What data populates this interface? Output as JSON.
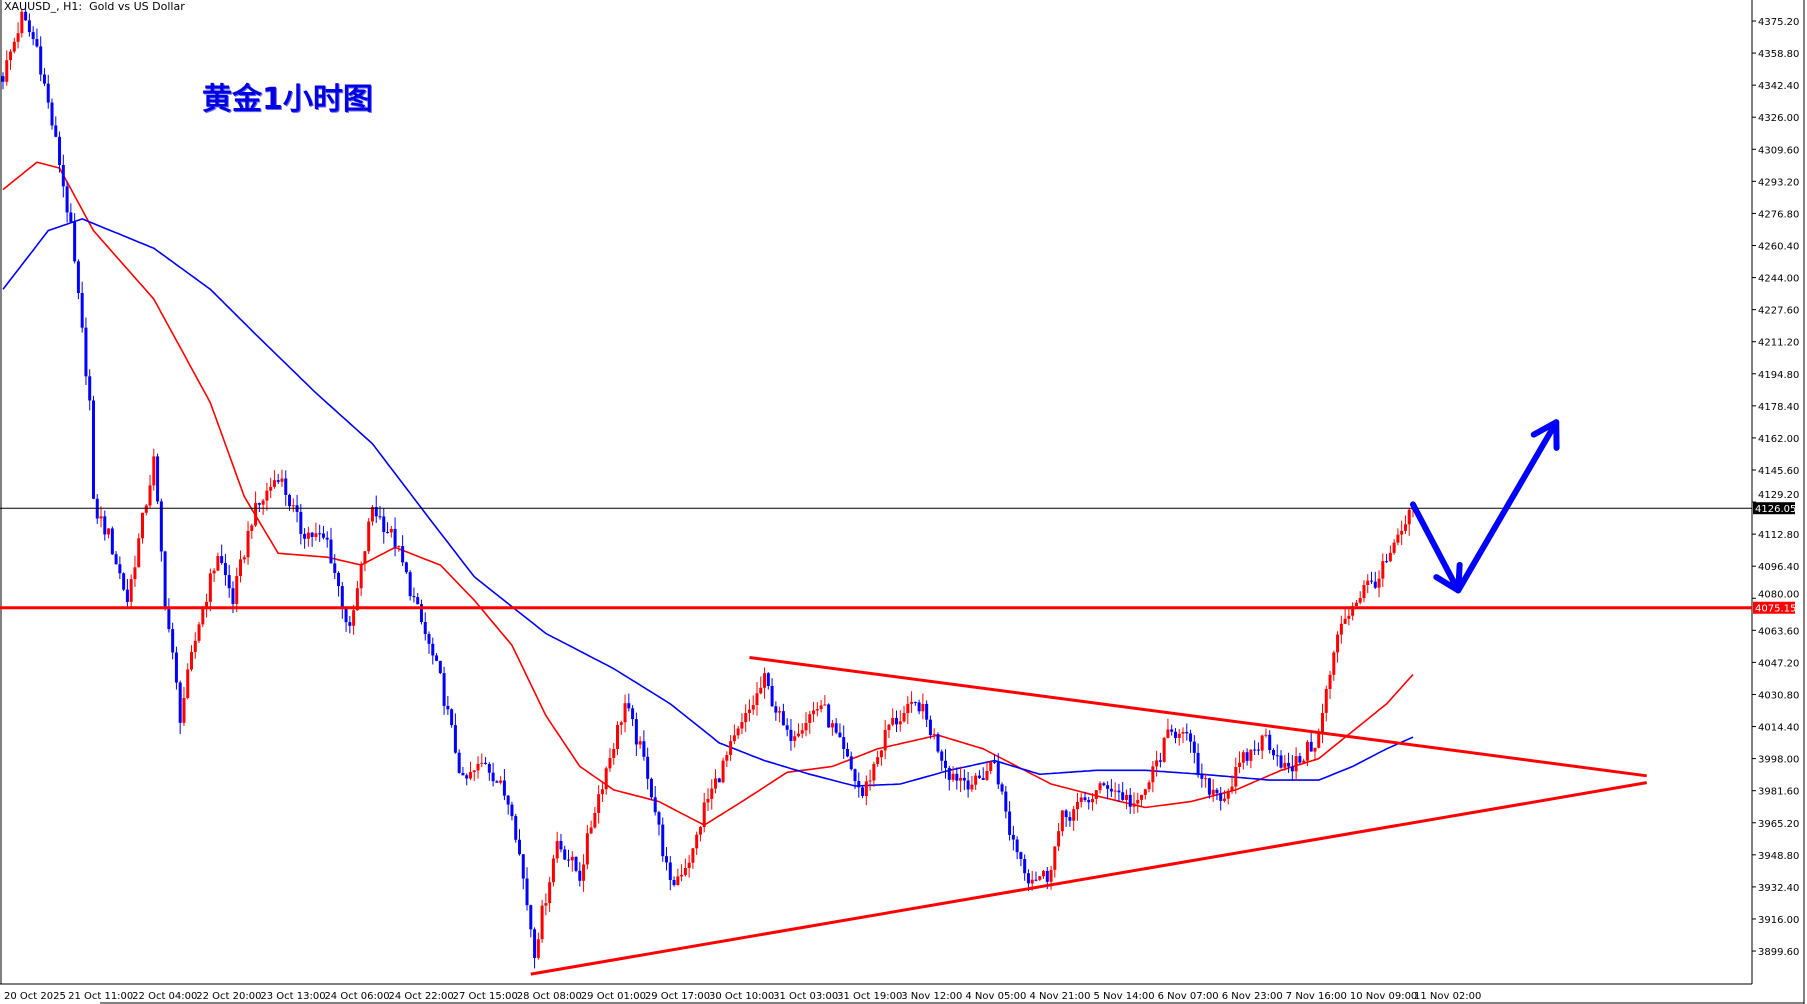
{
  "header": {
    "symbol_info": "XAUUSD_, H1:  Gold vs US Dollar"
  },
  "annotation_title": "黄金1小时图",
  "colors": {
    "bull": "#ff0000",
    "bear": "#0000ff",
    "ma_fast": "#ff0000",
    "ma_slow": "#0000ff",
    "support_line": "#ff0000",
    "trendline": "#ff0000",
    "arrow": "#0000ff",
    "current_price_line": "#000000"
  },
  "chart_data": {
    "type": "candlestick",
    "timeframe": "H1",
    "ylim": [
      3886,
      4384
    ],
    "y_ticks": [
      "4375.20",
      "4358.80",
      "4342.40",
      "4326.00",
      "4309.60",
      "4293.20",
      "4276.80",
      "4260.40",
      "4244.00",
      "4227.60",
      "4211.20",
      "4194.80",
      "4178.40",
      "4162.00",
      "4145.60",
      "4129.20",
      "4112.80",
      "4096.40",
      "4080.00",
      "4063.60",
      "4047.20",
      "4030.80",
      "4014.40",
      "3998.00",
      "3981.60",
      "3965.20",
      "3948.80",
      "3932.40",
      "3916.00",
      "3899.60"
    ],
    "x_ticks": [
      "20 Oct 2025",
      "21 Oct 11:00",
      "22 Oct 04:00",
      "22 Oct 20:00",
      "23 Oct 13:00",
      "24 Oct 06:00",
      "24 Oct 22:00",
      "27 Oct 15:00",
      "28 Oct 08:00",
      "29 Oct 01:00",
      "29 Oct 17:00",
      "30 Oct 10:00",
      "31 Oct 03:00",
      "31 Oct 19:00",
      "3 Nov 12:00",
      "4 Nov 05:00",
      "4 Nov 21:00",
      "5 Nov 14:00",
      "6 Nov 07:00",
      "6 Nov 23:00",
      "7 Nov 16:00",
      "10 Nov 09:00",
      "11 Nov 02:00"
    ],
    "x_tick_interval_bars": 17,
    "bars_count": 375,
    "price_path": [
      [
        0,
        4347
      ],
      [
        5,
        4377
      ],
      [
        9,
        4362
      ],
      [
        15,
        4303
      ],
      [
        18,
        4268
      ],
      [
        23,
        4180
      ],
      [
        24,
        4127
      ],
      [
        28,
        4112
      ],
      [
        33,
        4079
      ],
      [
        40,
        4150
      ],
      [
        43,
        4079
      ],
      [
        47,
        4020
      ],
      [
        52,
        4068
      ],
      [
        57,
        4103
      ],
      [
        61,
        4079
      ],
      [
        66,
        4121
      ],
      [
        73,
        4144
      ],
      [
        79,
        4115
      ],
      [
        86,
        4109
      ],
      [
        92,
        4062
      ],
      [
        98,
        4127
      ],
      [
        104,
        4109
      ],
      [
        110,
        4073
      ],
      [
        116,
        4038
      ],
      [
        122,
        3985
      ],
      [
        128,
        3997
      ],
      [
        135,
        3973
      ],
      [
        141,
        3900
      ],
      [
        147,
        3956
      ],
      [
        153,
        3938
      ],
      [
        157,
        3973
      ],
      [
        165,
        4026
      ],
      [
        171,
        3991
      ],
      [
        177,
        3932
      ],
      [
        183,
        3950
      ],
      [
        186,
        3973
      ],
      [
        193,
        4003
      ],
      [
        202,
        4038
      ],
      [
        208,
        4009
      ],
      [
        217,
        4026
      ],
      [
        228,
        3979
      ],
      [
        235,
        4015
      ],
      [
        243,
        4026
      ],
      [
        251,
        3991
      ],
      [
        258,
        3985
      ],
      [
        263,
        3997
      ],
      [
        267,
        3961
      ],
      [
        272,
        3938
      ],
      [
        277,
        3938
      ],
      [
        281,
        3967
      ],
      [
        293,
        3985
      ],
      [
        301,
        3973
      ],
      [
        309,
        4009
      ],
      [
        313,
        4015
      ],
      [
        318,
        3985
      ],
      [
        324,
        3979
      ],
      [
        329,
        3997
      ],
      [
        335,
        4009
      ],
      [
        341,
        3991
      ],
      [
        349,
        4009
      ],
      [
        351,
        4032
      ],
      [
        355,
        4068
      ],
      [
        361,
        4085
      ],
      [
        365,
        4091
      ],
      [
        370,
        4109
      ],
      [
        374,
        4126.05
      ]
    ],
    "moving_averages": [
      {
        "color": "#ff0000",
        "points": [
          [
            0,
            4289
          ],
          [
            9,
            4303
          ],
          [
            15,
            4300
          ],
          [
            24,
            4268
          ],
          [
            40,
            4233
          ],
          [
            55,
            4180
          ],
          [
            64,
            4132
          ],
          [
            73,
            4103
          ],
          [
            86,
            4101
          ],
          [
            95,
            4097
          ],
          [
            104,
            4106
          ],
          [
            116,
            4097
          ],
          [
            125,
            4079
          ],
          [
            135,
            4056
          ],
          [
            144,
            4020
          ],
          [
            153,
            3994
          ],
          [
            162,
            3982
          ],
          [
            174,
            3976
          ],
          [
            186,
            3964
          ],
          [
            196,
            3976
          ],
          [
            208,
            3991
          ],
          [
            220,
            3994
          ],
          [
            232,
            4003
          ],
          [
            248,
            4010
          ],
          [
            260,
            4003
          ],
          [
            269,
            3994
          ],
          [
            278,
            3985
          ],
          [
            290,
            3979
          ],
          [
            303,
            3973
          ],
          [
            315,
            3976
          ],
          [
            327,
            3982
          ],
          [
            339,
            3992
          ],
          [
            349,
            3998
          ],
          [
            358,
            4012
          ],
          [
            367,
            4026
          ],
          [
            374,
            4041
          ]
        ]
      },
      {
        "color": "#0000ff",
        "points": [
          [
            0,
            4238
          ],
          [
            12,
            4268
          ],
          [
            21,
            4274
          ],
          [
            40,
            4259
          ],
          [
            55,
            4238
          ],
          [
            67,
            4215
          ],
          [
            83,
            4185
          ],
          [
            98,
            4159
          ],
          [
            113,
            4121
          ],
          [
            125,
            4091
          ],
          [
            144,
            4062
          ],
          [
            162,
            4044
          ],
          [
            177,
            4026
          ],
          [
            190,
            4006
          ],
          [
            202,
            3997
          ],
          [
            214,
            3990
          ],
          [
            226,
            3984
          ],
          [
            238,
            3985
          ],
          [
            251,
            3992
          ],
          [
            263,
            3997
          ],
          [
            275,
            3990
          ],
          [
            290,
            3992
          ],
          [
            303,
            3992
          ],
          [
            318,
            3990
          ],
          [
            336,
            3987
          ],
          [
            349,
            3987
          ],
          [
            358,
            3994
          ],
          [
            367,
            4003
          ],
          [
            374,
            4009
          ]
        ]
      }
    ],
    "horizontal_lines": [
      {
        "price": 4126.05,
        "label": "4126.05",
        "color": "#000000"
      },
      {
        "price": 4075.15,
        "label": "4075.15",
        "color": "#ff0000"
      }
    ],
    "trendlines": [
      {
        "from": [
          198,
          4049.7
        ],
        "to": [
          436,
          3989.2
        ]
      },
      {
        "from": [
          140,
          3887.8
        ],
        "to": [
          436,
          3985.7
        ]
      }
    ],
    "forecast_arrow": [
      [
        374,
        4128
      ],
      [
        386,
        4084
      ],
      [
        412,
        4170
      ]
    ]
  }
}
